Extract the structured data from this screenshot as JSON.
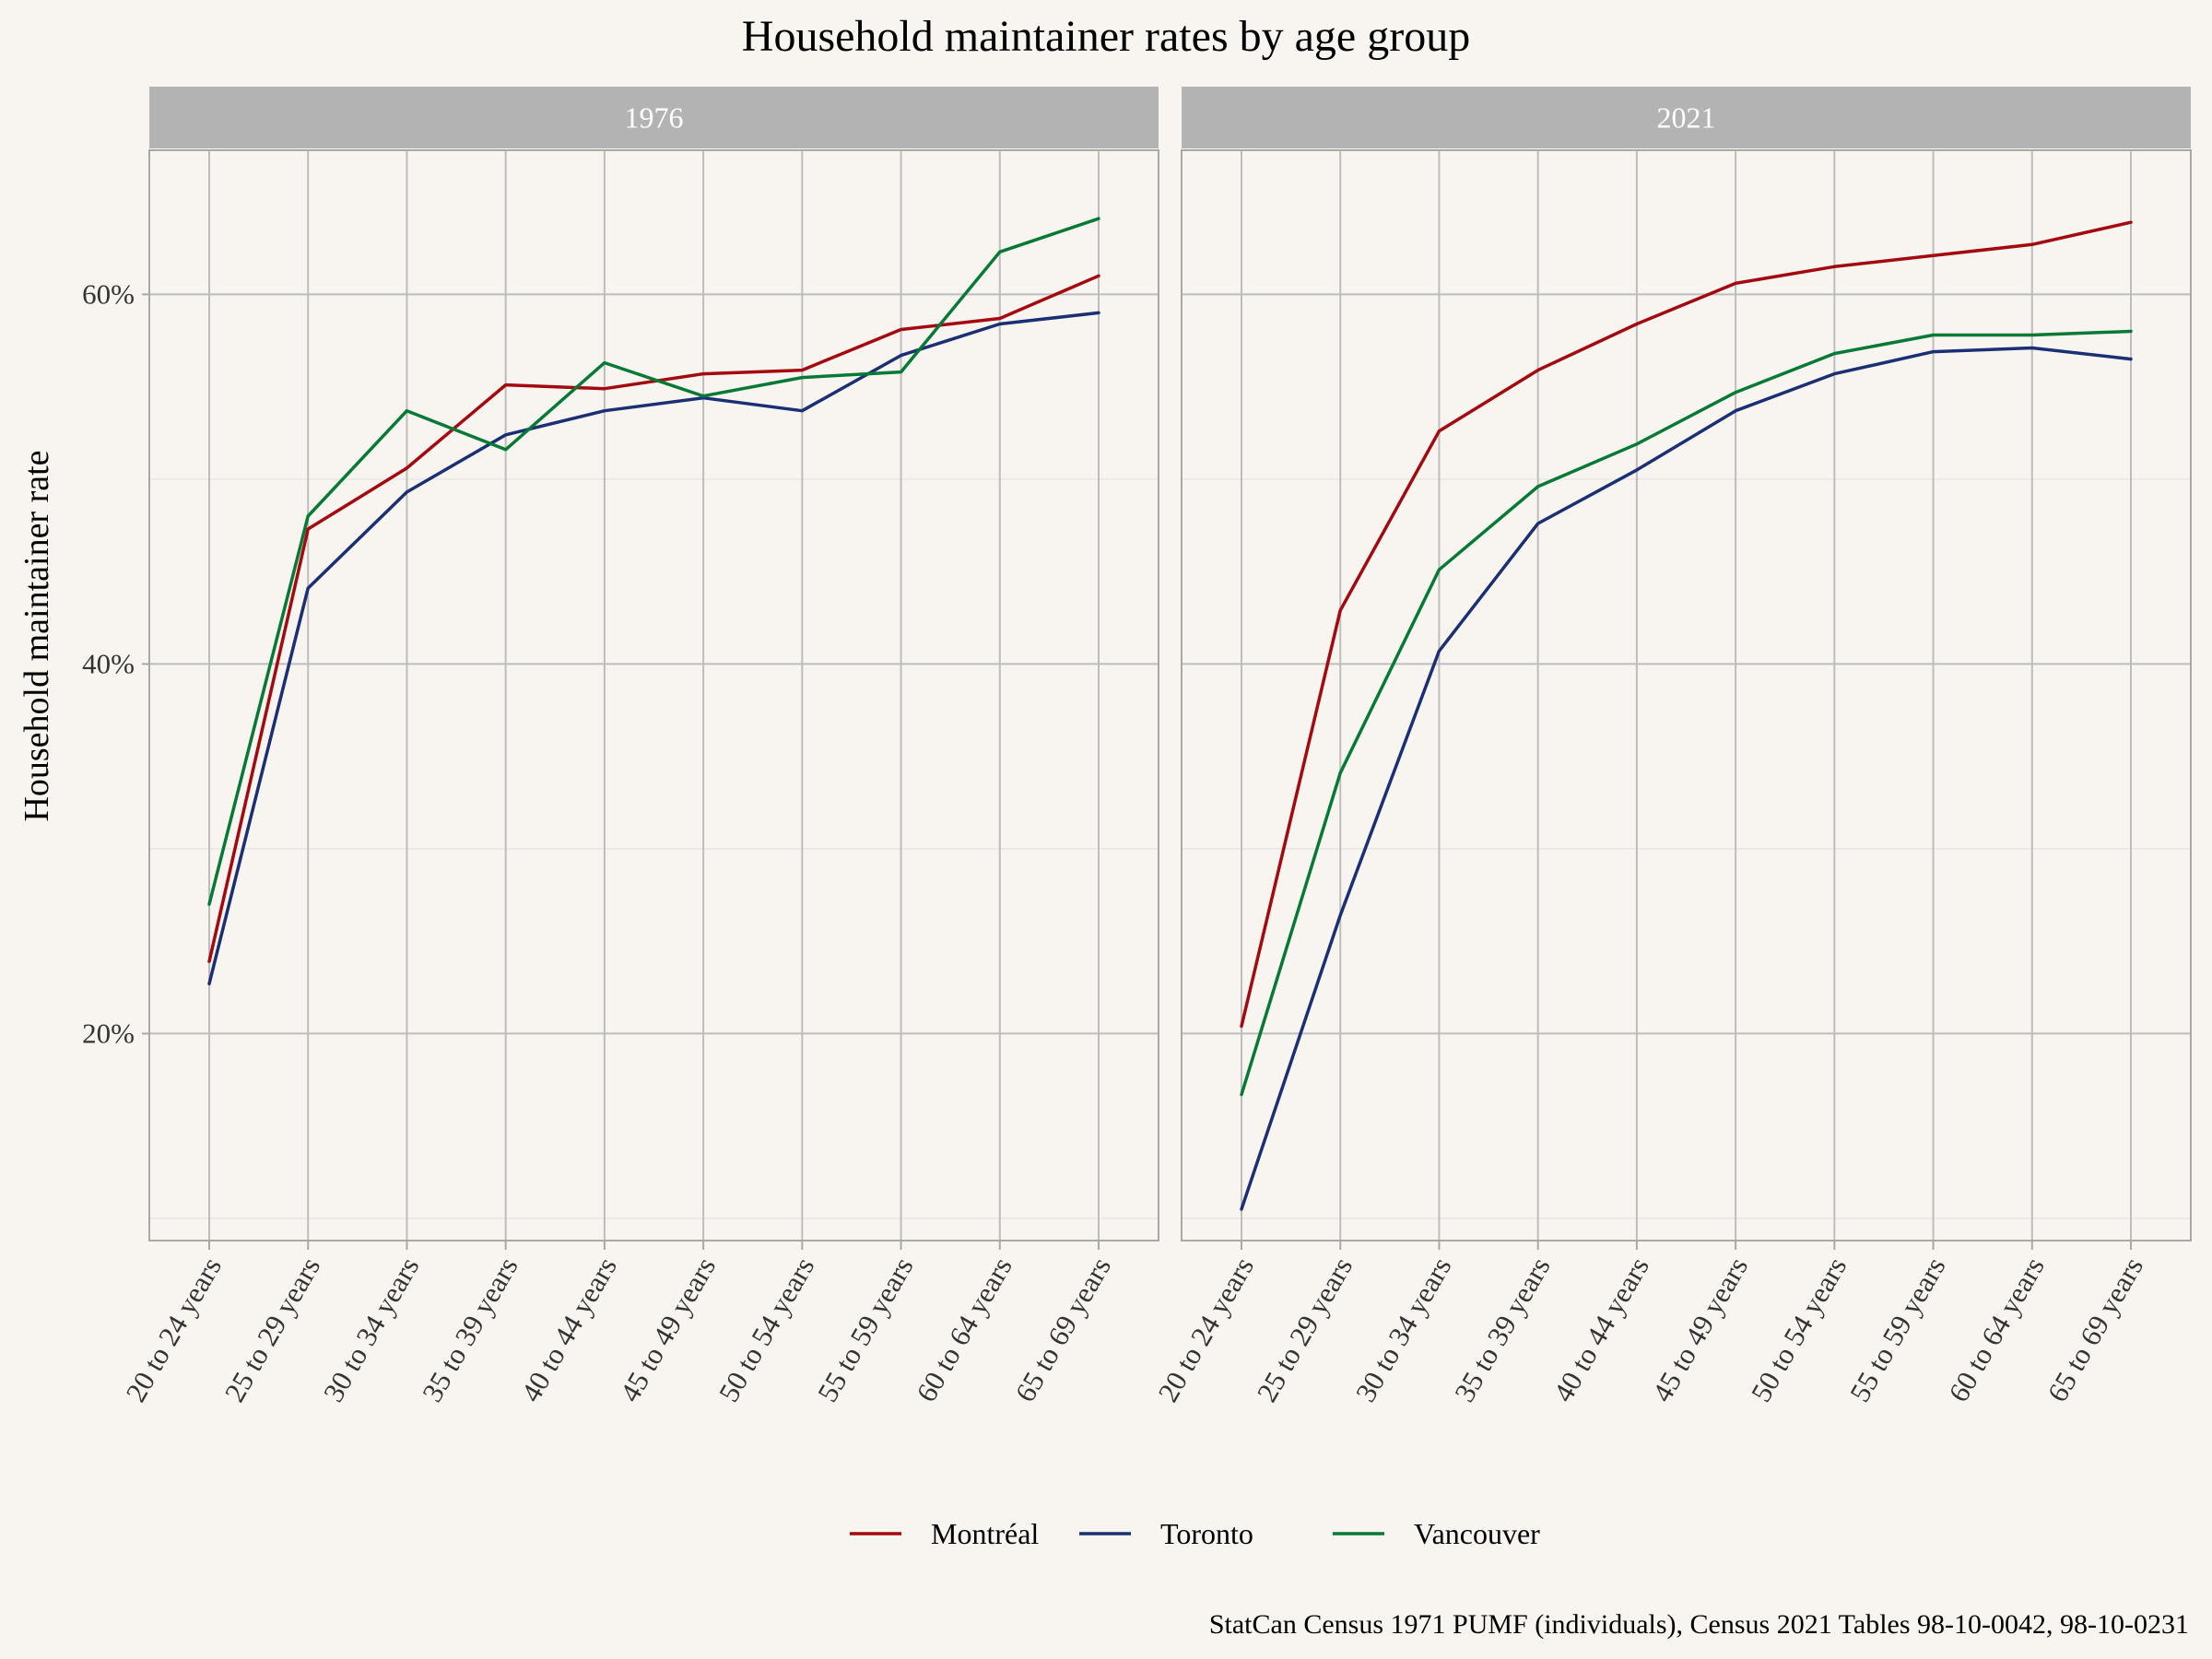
{
  "chart_data": {
    "type": "line",
    "title": "Household maintainer rates by age group",
    "ylabel": "Household maintainer rate",
    "xlabel": "",
    "caption": "StatCan Census 1971 PUMF (individuals), Census 2021 Tables 98-10-0042, 98-10-0231",
    "categories": [
      "20 to 24 years",
      "25 to 29 years",
      "30 to 34 years",
      "35 to 39 years",
      "40 to 44 years",
      "45 to 49 years",
      "50 to 54 years",
      "55 to 59 years",
      "60 to 64 years",
      "65 to 69 years"
    ],
    "ylim": [
      0.088,
      0.678
    ],
    "yticks": [
      0.2,
      0.4,
      0.6
    ],
    "ytick_labels": [
      "20%",
      "40%",
      "60%"
    ],
    "grid": true,
    "legend_position": "bottom",
    "colors": {
      "Montréal": "#a3090e",
      "Toronto": "#1b2f74",
      "Vancouver": "#067a35",
      "strip": "#b3b3b3",
      "grid_major": "#bdbdbd",
      "grid_minor": "#e8e6e2",
      "background": "#f8f5f1"
    },
    "legend": [
      "Montréal",
      "Toronto",
      "Vancouver"
    ],
    "panels": [
      {
        "label": "1976",
        "series": [
          {
            "name": "Montréal",
            "values": [
              0.239,
              0.473,
              0.506,
              0.551,
              0.549,
              0.557,
              0.559,
              0.581,
              0.587,
              0.61
            ]
          },
          {
            "name": "Toronto",
            "values": [
              0.227,
              0.441,
              0.493,
              0.524,
              0.537,
              0.544,
              0.537,
              0.567,
              0.584,
              0.59
            ]
          },
          {
            "name": "Vancouver",
            "values": [
              0.27,
              0.48,
              0.537,
              0.516,
              0.563,
              0.545,
              0.555,
              0.558,
              0.623,
              0.641
            ]
          }
        ]
      },
      {
        "label": "2021",
        "series": [
          {
            "name": "Montréal",
            "values": [
              0.204,
              0.429,
              0.526,
              0.559,
              0.584,
              0.606,
              0.615,
              0.621,
              0.627,
              0.639
            ]
          },
          {
            "name": "Toronto",
            "values": [
              0.105,
              0.264,
              0.407,
              0.476,
              0.505,
              0.537,
              0.557,
              0.569,
              0.571,
              0.565
            ]
          },
          {
            "name": "Vancouver",
            "values": [
              0.167,
              0.341,
              0.451,
              0.496,
              0.519,
              0.547,
              0.568,
              0.578,
              0.578,
              0.58
            ]
          }
        ]
      }
    ]
  }
}
